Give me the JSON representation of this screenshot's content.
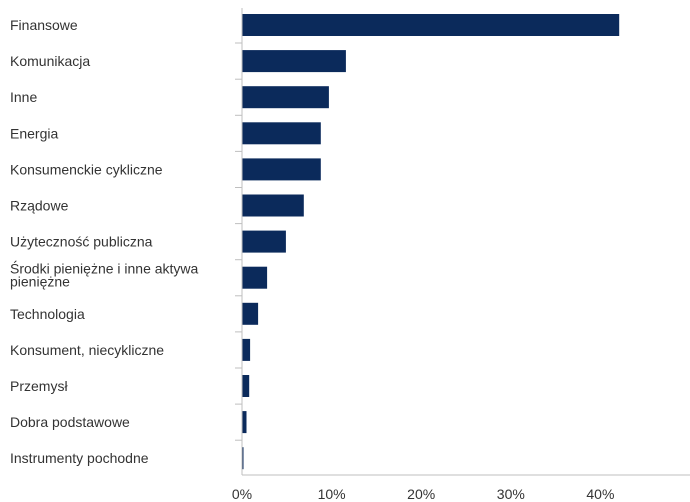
{
  "chart_data": {
    "type": "bar",
    "orientation": "horizontal",
    "categories": [
      "Finansowe",
      "Komunikacja",
      "Inne",
      "Energia",
      "Konsumenckie cykliczne",
      "Rządowe",
      "Użyteczność publiczna",
      "Środki pieniężne i inne aktywa pieniężne",
      "Technologia",
      "Konsument, niecykliczne",
      "Przemysł",
      "Dobra podstawowe",
      "Instrumenty pochodne"
    ],
    "category_lines": [
      [
        "Finansowe"
      ],
      [
        "Komunikacja"
      ],
      [
        "Inne"
      ],
      [
        "Energia"
      ],
      [
        "Konsumenckie cykliczne"
      ],
      [
        "Rządowe"
      ],
      [
        "Użyteczność publiczna"
      ],
      [
        "Środki pieniężne i inne aktywa",
        "pieniężne"
      ],
      [
        "Technologia"
      ],
      [
        "Konsument, niecykliczne"
      ],
      [
        "Przemysł"
      ],
      [
        "Dobra podstawowe"
      ],
      [
        "Instrumenty pochodne"
      ]
    ],
    "values": [
      42.1,
      11.6,
      9.7,
      8.8,
      8.8,
      6.9,
      4.9,
      2.8,
      1.8,
      0.9,
      0.8,
      0.5,
      0.1
    ],
    "xlim": [
      0,
      50
    ],
    "xticks": [
      0,
      10,
      20,
      30,
      40
    ],
    "xtick_labels": [
      "0%",
      "10%",
      "20%",
      "30%",
      "40%"
    ],
    "bar_color": "#0b2a5b",
    "grid": false,
    "title": "",
    "xlabel": "",
    "ylabel": ""
  }
}
